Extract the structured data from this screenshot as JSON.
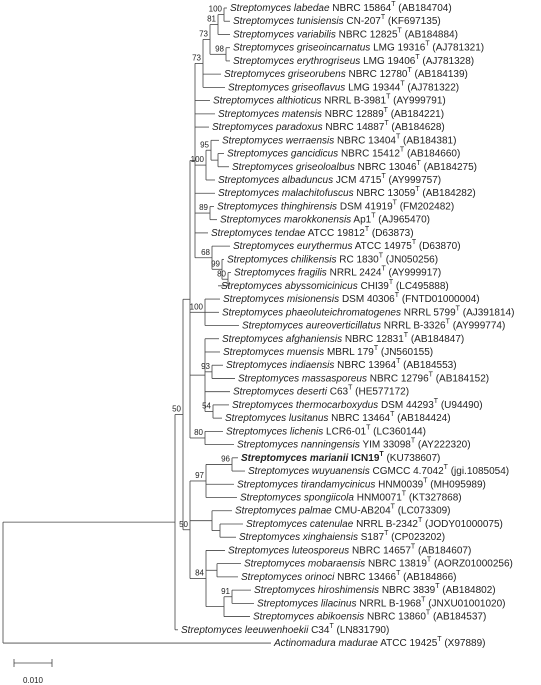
{
  "superscript": "T",
  "scale_bar": "0.010",
  "bootstrap": [
    100,
    81,
    98,
    73,
    73,
    95,
    100,
    89,
    68,
    99,
    80,
    100,
    93,
    54,
    50,
    80,
    96,
    97,
    50,
    84,
    91
  ],
  "leaves": [
    {
      "species": "Streptomyces labedae",
      "strain": "NBRC 15864",
      "accession": "(AB184704)"
    },
    {
      "species": "Streptomyces tunisiensis",
      "strain": "CN-207",
      "accession": "(KF697135)"
    },
    {
      "species": "Streptomyces variabilis",
      "strain": "NBRC 12825",
      "accession": "(AB184884)"
    },
    {
      "species": "Streptomyces griseoincarnatus",
      "strain": "LMG 19316",
      "accession": "(AJ781321)"
    },
    {
      "species": "Streptomyces erythrogriseus",
      "strain": "LMG 19406",
      "accession": "(AJ781328)"
    },
    {
      "species": "Streptomyces griseorubens",
      "strain": "NBRC 12780",
      "accession": "(AB184139)"
    },
    {
      "species": "Streptomyces griseoflavus",
      "strain": "LMG 19344",
      "accession": "(AJ781322)"
    },
    {
      "species": "Streptomyces althioticus",
      "strain": "NRRL B-3981",
      "accession": "(AY999791)"
    },
    {
      "species": "Streptomyces matensis",
      "strain": "NBRC 12889",
      "accession": "(AB184221)"
    },
    {
      "species": "Streptomyces paradoxus",
      "strain": "NBRC 14887",
      "accession": "(AB184628)"
    },
    {
      "species": "Streptomyces werraensis",
      "strain": "NBRC 13404",
      "accession": "(AB184381)"
    },
    {
      "species": "Streptomyces gancidicus",
      "strain": "NBRC 15412",
      "accession": "(AB184660)"
    },
    {
      "species": "Streptomyces griseoloalbus",
      "strain": "NBRC 13046",
      "accession": "(AB184275)"
    },
    {
      "species": "Streptomyces albaduncus",
      "strain": "JCM 4715",
      "accession": "(AY999757)"
    },
    {
      "species": "Streptomyces malachitofuscus",
      "strain": "NBRC 13059",
      "accession": "(AB184282)"
    },
    {
      "species": "Streptomyces thinghirensis",
      "strain": "DSM 41919",
      "accession": "(FM202482)"
    },
    {
      "species": "Streptomyces marokkonensis",
      "strain": "Ap1",
      "accession": "(AJ965470)"
    },
    {
      "species": "Streptomyces tendae",
      "strain": "ATCC 19812",
      "accession": "(D63873)"
    },
    {
      "species": "Streptomyces eurythermus",
      "strain": "ATCC 14975",
      "accession": "(D63870)"
    },
    {
      "species": "Streptomyces chilikensis",
      "strain": "RC 1830",
      "accession": "(JN050256)"
    },
    {
      "species": "Streptomyces fragilis",
      "strain": "NRRL 2424",
      "accession": "(AY999917)"
    },
    {
      "species": "Streptomyces abyssomicinicus",
      "strain": "CHI39",
      "accession": "(LC495888)"
    },
    {
      "species": "Streptomyces misionensis",
      "strain": "DSM 40306",
      "accession": "(FNTD01000004)"
    },
    {
      "species": "Streptomyces phaeoluteichromatogenes",
      "strain": "NRRL 5799",
      "accession": "(AJ391814)"
    },
    {
      "species": "Streptomyces aureoverticillatus",
      "strain": "NRRL B-3326",
      "accession": "(AY999774)"
    },
    {
      "species": "Streptomyces afghaniensis",
      "strain": "NBRC 12831",
      "accession": "(AB184847)"
    },
    {
      "species": "Streptomyces muensis",
      "strain": "MBRL 179",
      "accession": "(JN560155)"
    },
    {
      "species": "Streptomyces indiaensis",
      "strain": "NBRC 13964",
      "accession": "(AB184553)"
    },
    {
      "species": "Streptomyces massasporeus",
      "strain": "NBRC 12796",
      "accession": "(AB184152)"
    },
    {
      "species": "Streptomyces deserti",
      "strain": "C63",
      "accession": "(HE577172)"
    },
    {
      "species": "Streptomyces thermocarboxydus",
      "strain": "DSM 44293",
      "accession": "(U94490)"
    },
    {
      "species": "Streptomyces lusitanus",
      "strain": "NBRC 13464",
      "accession": "(AB184424)"
    },
    {
      "species": "Streptomyces lichenis",
      "strain": "LCR6-01",
      "accession": "(LC360144)"
    },
    {
      "species": "Streptomyces nanningensis",
      "strain": "YIM 33098",
      "accession": "(AY222320)"
    },
    {
      "species": "Streptomyces marianii",
      "strain": "ICN19",
      "accession": "(KU738607)",
      "bold": true
    },
    {
      "species": "Streptomyces wuyuanensis",
      "strain": "CGMCC 4.7042",
      "accession": "(jgi.1085054)"
    },
    {
      "species": "Streptomyces tirandamycinicus",
      "strain": "HNM0039",
      "accession": "(MH095989)"
    },
    {
      "species": "Streptomyces spongiicola",
      "strain": "HNM0071",
      "accession": "(KT327868)"
    },
    {
      "species": "Streptomyces palmae",
      "strain": "CMU-AB204",
      "accession": "(LC073309)"
    },
    {
      "species": "Streptomyces catenulae",
      "strain": "NRRL B-2342",
      "accession": "(JODY01000075)"
    },
    {
      "species": "Streptomyces xinghaiensis",
      "strain": "S187",
      "accession": "(CP023202)"
    },
    {
      "species": "Streptomyces luteosporeus",
      "strain": "NBRC 14657",
      "accession": "(AB184607)"
    },
    {
      "species": "Streptomyces mobaraensis",
      "strain": "NBRC 13819",
      "accession": "(AORZ01000256)"
    },
    {
      "species": "Streptomyces orinoci",
      "strain": "NBRC 13466",
      "accession": "(AB184866)"
    },
    {
      "species": "Streptomyces hiroshimensis",
      "strain": "NBRC 3839",
      "accession": "(AB184802)"
    },
    {
      "species": "Streptomyces lilacinus",
      "strain": "NRRL B-1968",
      "accession": "(JNXU01001020)"
    },
    {
      "species": "Streptomyces abikoensis",
      "strain": "NBRC 13860",
      "accession": "(AB184537)"
    },
    {
      "species": "Streptomyces leeuwenhoekii",
      "strain": "C34",
      "accession": "(LN831790)"
    },
    {
      "species": "Actinomadura madurae",
      "strain": "ATCC 19425",
      "accession": "(X97889)"
    }
  ]
}
